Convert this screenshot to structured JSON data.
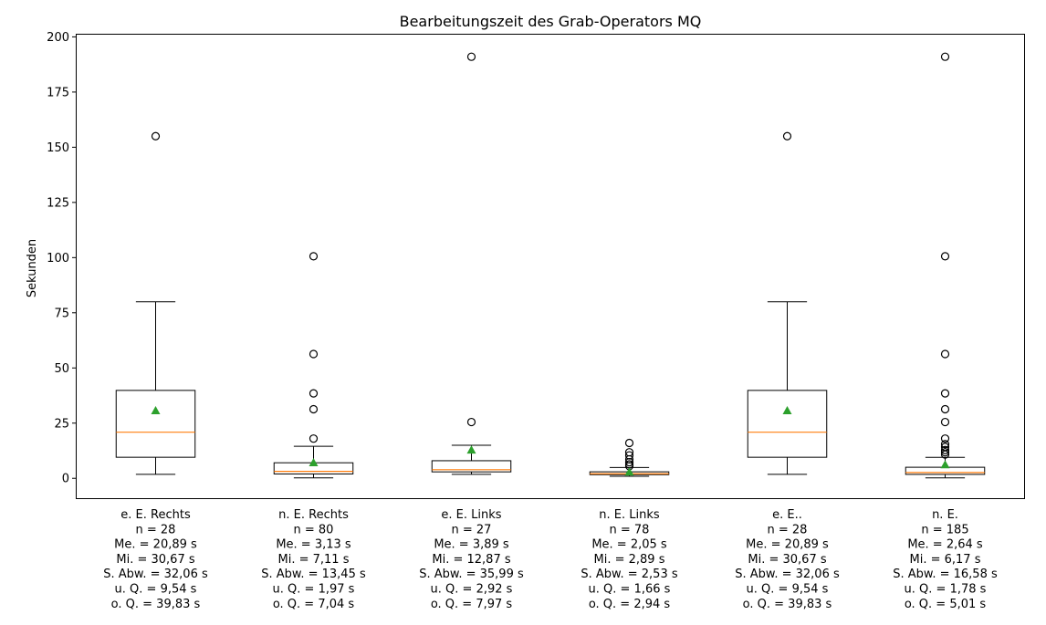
{
  "chart_data": {
    "type": "box",
    "title": "Bearbeitungszeit des Grab-Operators MQ",
    "ylabel": "Sekunden",
    "xlabel": "",
    "ylim": [
      -9,
      201
    ],
    "yticks": [
      0,
      25,
      50,
      75,
      100,
      125,
      150,
      175,
      200
    ],
    "grid": false,
    "colors": {
      "box": "#000000",
      "median": "#ff7f0e",
      "mean": "#2ca02c",
      "outlier": "#000000"
    },
    "categories": [
      {
        "label_lines": [
          "e. E. Rechts",
          "n = 28",
          "Me. = 20,89 s",
          " Mi. = 30,67 s",
          "S. Abw. = 32,06 s",
          "u. Q. = 9,54 s",
          "o. Q. = 39,83 s"
        ],
        "whisker_low": 1.8,
        "q1": 9.54,
        "median": 20.89,
        "q3": 39.83,
        "whisker_high": 80,
        "mean": 30.67,
        "outliers": [
          155
        ]
      },
      {
        "label_lines": [
          "n. E. Rechts",
          "n = 80",
          "Me. = 3,13 s",
          " Mi. = 7,11 s",
          "S. Abw. = 13,45 s",
          "u. Q. = 1,97 s",
          " o. Q. = 7,04 s"
        ],
        "whisker_low": 0.2,
        "q1": 1.97,
        "median": 3.13,
        "q3": 7.04,
        "whisker_high": 14.5,
        "mean": 7.11,
        "outliers": [
          18,
          31.3,
          38.5,
          56.3,
          100.6
        ]
      },
      {
        "label_lines": [
          "e. E. Links",
          "n = 27",
          "Me. = 3,89 s",
          " Mi. = 12,87 s",
          "S. Abw. = 35,99 s",
          "u. Q. = 2,92 s",
          " o. Q. = 7,97 s"
        ],
        "whisker_low": 1.8,
        "q1": 2.92,
        "median": 3.89,
        "q3": 7.97,
        "whisker_high": 15,
        "mean": 12.87,
        "outliers": [
          25.5,
          191
        ]
      },
      {
        "label_lines": [
          "n. E. Links",
          "n = 78",
          "Me. = 2,05 s",
          " Mi. = 2,89 s",
          "S. Abw. = 2,53 s",
          "u. Q. = 1,66 s",
          " o. Q. = 2,94 s"
        ],
        "whisker_low": 0.9,
        "q1": 1.66,
        "median": 2.05,
        "q3": 2.94,
        "whisker_high": 4.9,
        "mean": 2.89,
        "outliers": [
          5.5,
          6.3,
          7.3,
          8.6,
          10.4,
          11.8,
          16
        ]
      },
      {
        "label_lines": [
          "e. E..",
          "n = 28",
          "Me. = 20,89 s",
          " Mi. = 30,67 s",
          "S. Abw. = 32,06 s",
          "u. Q. = 9,54 s",
          " o. Q. = 39,83 s"
        ],
        "whisker_low": 1.8,
        "q1": 9.54,
        "median": 20.89,
        "q3": 39.83,
        "whisker_high": 80,
        "mean": 30.67,
        "outliers": [
          155
        ]
      },
      {
        "label_lines": [
          "n. E.",
          "n = 185",
          "Me. = 2,64 s",
          " Mi. = 6,17 s",
          "S. Abw. = 16,58 s",
          "u. Q. = 1,78 s",
          " o. Q. = 5,01 s"
        ],
        "whisker_low": 0.2,
        "q1": 1.78,
        "median": 2.64,
        "q3": 5.01,
        "whisker_high": 9.5,
        "mean": 6.17,
        "outliers": [
          10.8,
          11.8,
          12.8,
          14.2,
          15.5,
          18,
          25.5,
          31.3,
          38.5,
          56.3,
          100.6,
          191
        ]
      }
    ]
  }
}
